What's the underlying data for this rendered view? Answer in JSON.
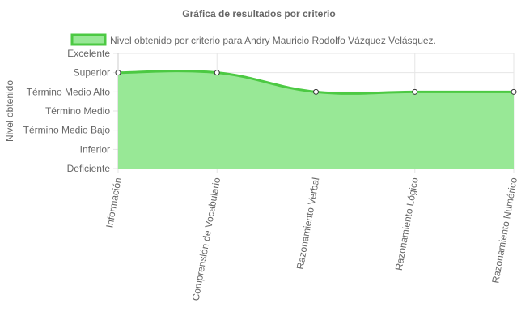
{
  "chart_data": {
    "type": "area",
    "title": "Gráfica de resultados por criterio",
    "ylabel": "Nivel obtenido",
    "xlabel": "",
    "categories": [
      "Información",
      "Comprensión de Vocabulario",
      "Razonamiento Verbal",
      "Razonamiento Lógico",
      "Razonamiento Numérico"
    ],
    "y_levels": [
      "Deficiente",
      "Inferior",
      "Término Medio Bajo",
      "Término Medio",
      "Término Medio Alto",
      "Superior",
      "Excelente"
    ],
    "series": [
      {
        "name": "Nivel obtenido por criterio para Andry Mauricio Rodolfo Vázquez Velásquez.",
        "values": [
          5,
          5,
          4,
          4,
          4
        ],
        "value_labels": [
          "Superior",
          "Superior",
          "Término Medio Alto",
          "Término Medio Alto",
          "Término Medio Alto"
        ]
      }
    ],
    "ylim": [
      0,
      6
    ],
    "grid": true,
    "legend_position": "top",
    "colors": {
      "fill": "#98E896",
      "line": "#4CC943",
      "grid": "#E6E6E6",
      "text": "#666666"
    }
  }
}
